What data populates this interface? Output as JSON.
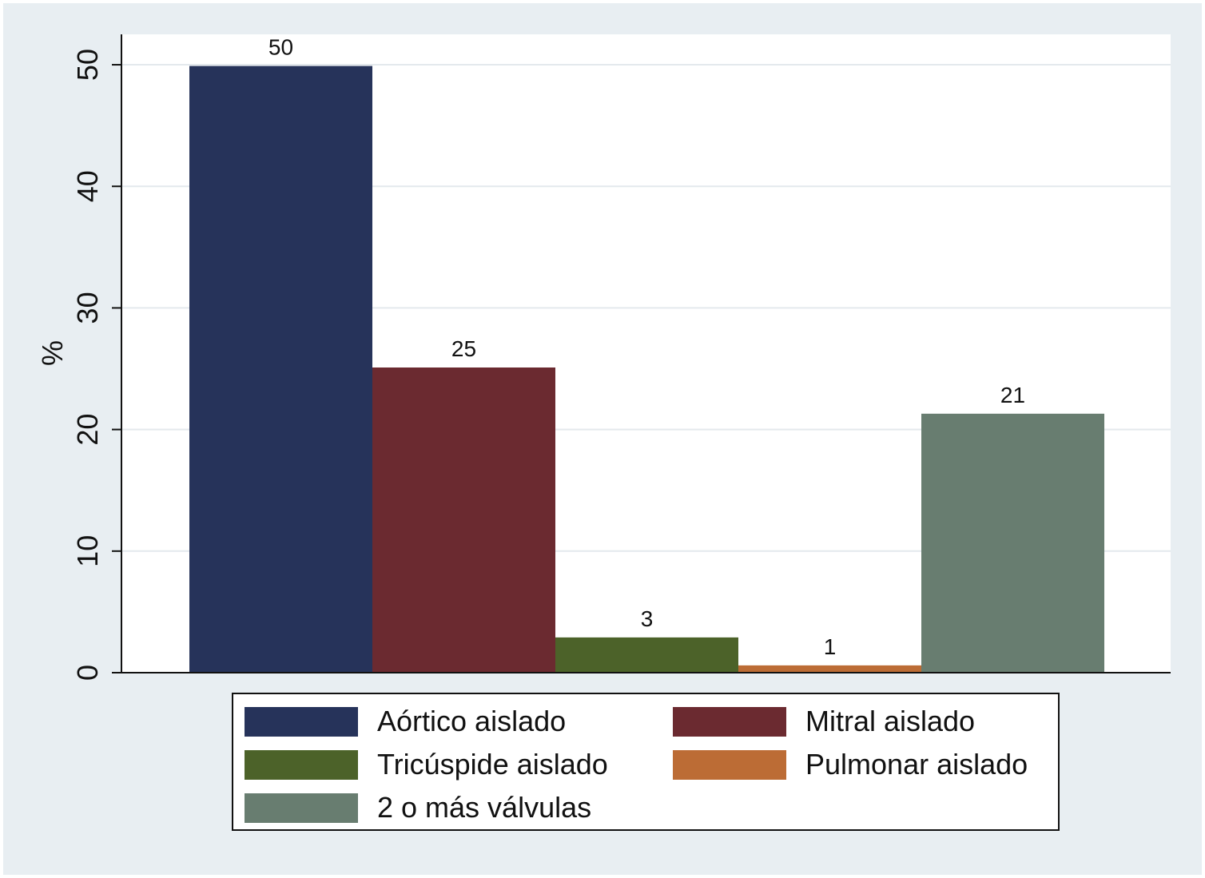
{
  "chart_data": {
    "type": "bar",
    "title": "",
    "xlabel": "",
    "ylabel": "%",
    "ylim": [
      0,
      52.5
    ],
    "yticks": [
      0,
      10,
      20,
      30,
      40,
      50
    ],
    "grid": true,
    "legend_position": "bottom",
    "series": [
      {
        "name": "Aórtico aislado",
        "value": 49.9,
        "label": "50",
        "color": "#26335a"
      },
      {
        "name": "Mitral aislado",
        "value": 25.1,
        "label": "25",
        "color": "#6b2a30"
      },
      {
        "name": "Tricúspide aislado",
        "value": 2.9,
        "label": "3",
        "color": "#4c6229"
      },
      {
        "name": "Pulmonar aislado",
        "value": 0.6,
        "label": "1",
        "color": "#bc6c35"
      },
      {
        "name": "2 o más válvulas",
        "value": 21.3,
        "label": "21",
        "color": "#687d70"
      }
    ]
  }
}
